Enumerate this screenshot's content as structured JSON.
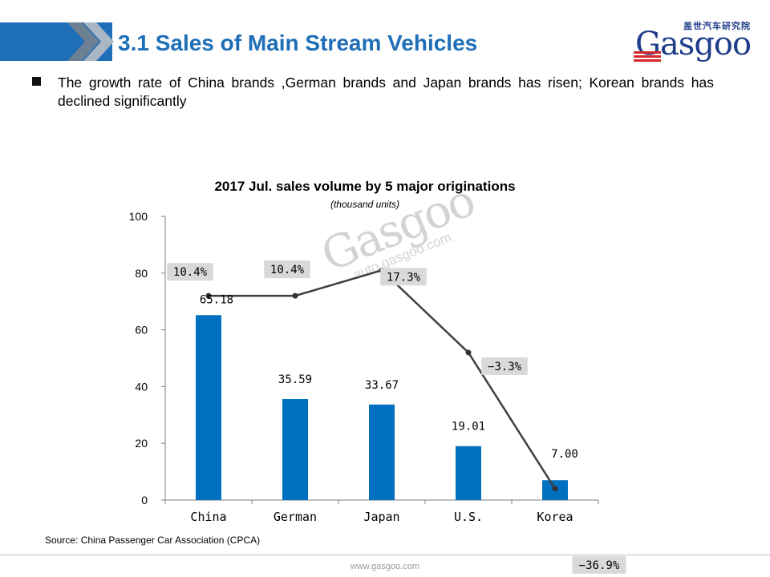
{
  "header": {
    "title": "3.1 Sales of Main Stream Vehicles",
    "logo_cn": "盖世汽车研究院",
    "logo_word": "Gasgoo",
    "accent_color": "#1f6fb8"
  },
  "bullet": {
    "text": "The growth rate of China brands ,German brands and Japan brands has risen; Korean brands has declined significantly"
  },
  "chart_data": {
    "type": "bar",
    "title": "2017 Jul. sales volume by 5 major originations",
    "subtitle": "(thousand units)",
    "categories": [
      "China",
      "German",
      "Japan",
      "U.S.",
      "Korea"
    ],
    "series": [
      {
        "values": [
          65.18,
          35.59,
          33.67,
          19.01,
          7.0
        ],
        "labels": [
          "65.18",
          "35.59",
          "33.67",
          "19.01",
          "7.00"
        ],
        "color": "#0070c0"
      }
    ],
    "growth_line": {
      "values": [
        72,
        72,
        81,
        52,
        4
      ],
      "labels": [
        "10.4%",
        "10.4%",
        "17.3%",
        "−3.3%",
        "−36.9%"
      ],
      "color": "#404040",
      "label_bg": "#d9d9d9"
    },
    "yticks": [
      "0",
      "20",
      "40",
      "60",
      "80",
      "100"
    ],
    "ylim": [
      0,
      100
    ],
    "grid": false,
    "legend": "none"
  },
  "watermark": {
    "word": "Gasgoo",
    "url": "auto.gasgoo.com"
  },
  "source": "Source: China Passenger Car Association (CPCA)",
  "footer": {
    "url": "www.gasgoo.com"
  }
}
